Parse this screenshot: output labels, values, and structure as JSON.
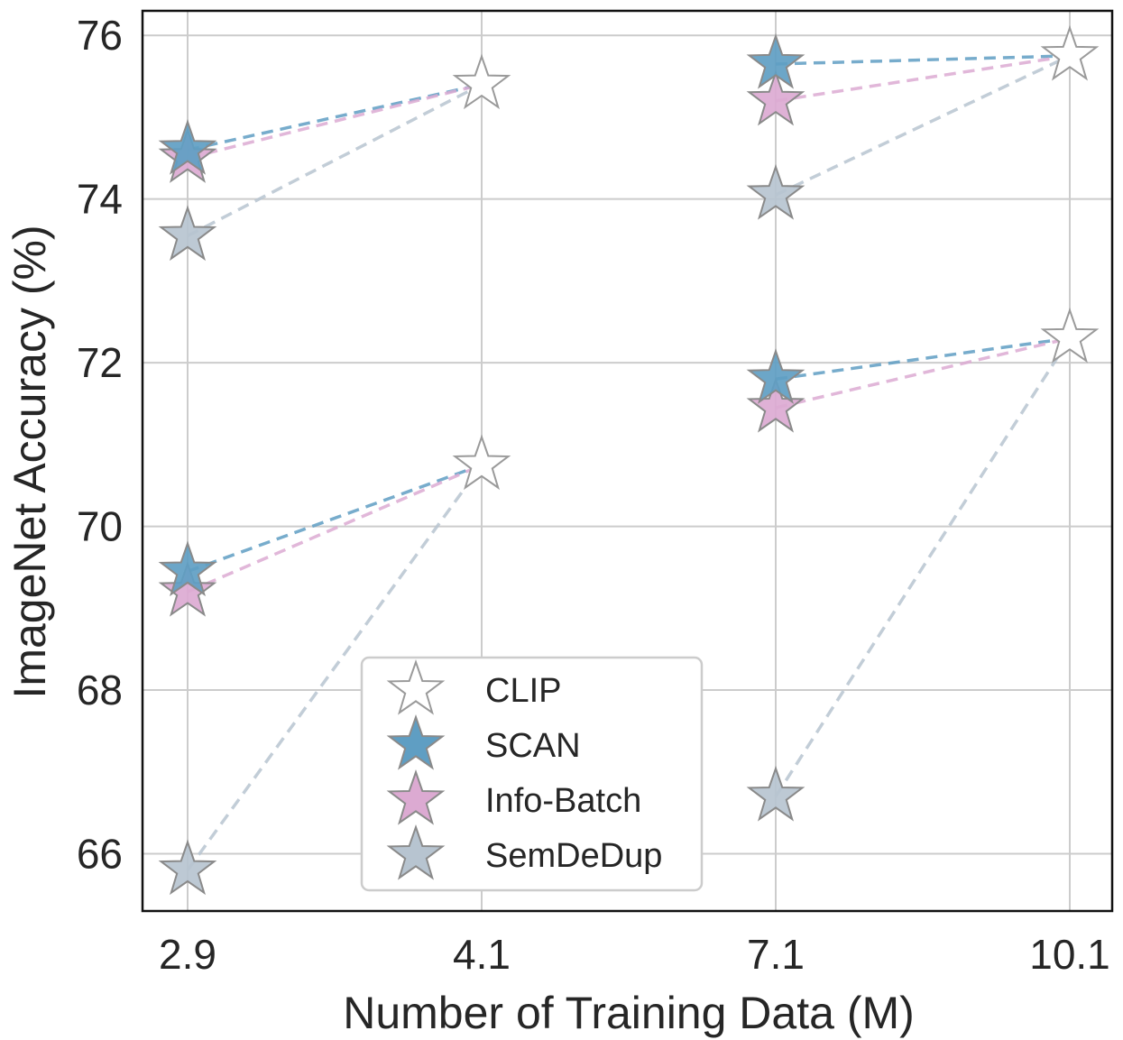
{
  "chart_data": {
    "type": "scatter",
    "title": "",
    "xlabel": "Number of Training Data (M)",
    "ylabel": "ImageNet Accuracy (%)",
    "x_categories": [
      "2.9",
      "4.1",
      "7.1",
      "10.1"
    ],
    "ylim": [
      65.3,
      76.3
    ],
    "yticks": [
      66,
      68,
      70,
      72,
      74,
      76
    ],
    "grid": true,
    "legend_position": "bottom-center",
    "marker": "star",
    "series": [
      {
        "name": "CLIP",
        "color": "#ffffff",
        "edge": "#9a9a9a",
        "points": [
          {
            "x": "4.1",
            "y": 75.4
          },
          {
            "x": "10.1",
            "y": 75.75
          },
          {
            "x": "4.1",
            "y": 70.75
          },
          {
            "x": "10.1",
            "y": 72.3
          }
        ]
      },
      {
        "name": "SCAN",
        "color": "#5f9ec3",
        "edge": "#8a8a8a",
        "points": [
          {
            "x": "2.9",
            "y": 74.6
          },
          {
            "x": "7.1",
            "y": 75.65
          },
          {
            "x": "2.9",
            "y": 69.45
          },
          {
            "x": "7.1",
            "y": 71.8
          }
        ]
      },
      {
        "name": "Info-Batch",
        "color": "#dcaad2",
        "edge": "#8a8a8a",
        "points": [
          {
            "x": "2.9",
            "y": 74.5
          },
          {
            "x": "7.1",
            "y": 75.2
          },
          {
            "x": "2.9",
            "y": 69.2
          },
          {
            "x": "7.1",
            "y": 71.45
          }
        ]
      },
      {
        "name": "SemDeDup",
        "color": "#b7c4d0",
        "edge": "#8a8a8a",
        "points": [
          {
            "x": "2.9",
            "y": 73.55
          },
          {
            "x": "7.1",
            "y": 74.05
          },
          {
            "x": "2.9",
            "y": 65.8
          },
          {
            "x": "7.1",
            "y": 66.7
          }
        ]
      }
    ],
    "connectors": [
      {
        "series": "SCAN",
        "color": "#5f9ec3",
        "segments": [
          [
            {
              "x": "2.9",
              "y": 74.6
            },
            {
              "x": "4.1",
              "y": 75.4
            }
          ],
          [
            {
              "x": "7.1",
              "y": 75.65
            },
            {
              "x": "10.1",
              "y": 75.75
            }
          ],
          [
            {
              "x": "2.9",
              "y": 69.45
            },
            {
              "x": "4.1",
              "y": 70.75
            }
          ],
          [
            {
              "x": "7.1",
              "y": 71.8
            },
            {
              "x": "10.1",
              "y": 72.3
            }
          ]
        ]
      },
      {
        "series": "Info-Batch",
        "color": "#dcaad2",
        "segments": [
          [
            {
              "x": "2.9",
              "y": 74.5
            },
            {
              "x": "4.1",
              "y": 75.4
            }
          ],
          [
            {
              "x": "7.1",
              "y": 75.2
            },
            {
              "x": "10.1",
              "y": 75.75
            }
          ],
          [
            {
              "x": "2.9",
              "y": 69.2
            },
            {
              "x": "4.1",
              "y": 70.75
            }
          ],
          [
            {
              "x": "7.1",
              "y": 71.45
            },
            {
              "x": "10.1",
              "y": 72.3
            }
          ]
        ]
      },
      {
        "series": "SemDeDup",
        "color": "#b7c4d0",
        "segments": [
          [
            {
              "x": "2.9",
              "y": 73.55
            },
            {
              "x": "4.1",
              "y": 75.4
            }
          ],
          [
            {
              "x": "7.1",
              "y": 74.05
            },
            {
              "x": "10.1",
              "y": 75.75
            }
          ],
          [
            {
              "x": "2.9",
              "y": 65.8
            },
            {
              "x": "4.1",
              "y": 70.75
            }
          ],
          [
            {
              "x": "7.1",
              "y": 66.7
            },
            {
              "x": "10.1",
              "y": 72.3
            }
          ]
        ]
      }
    ]
  }
}
